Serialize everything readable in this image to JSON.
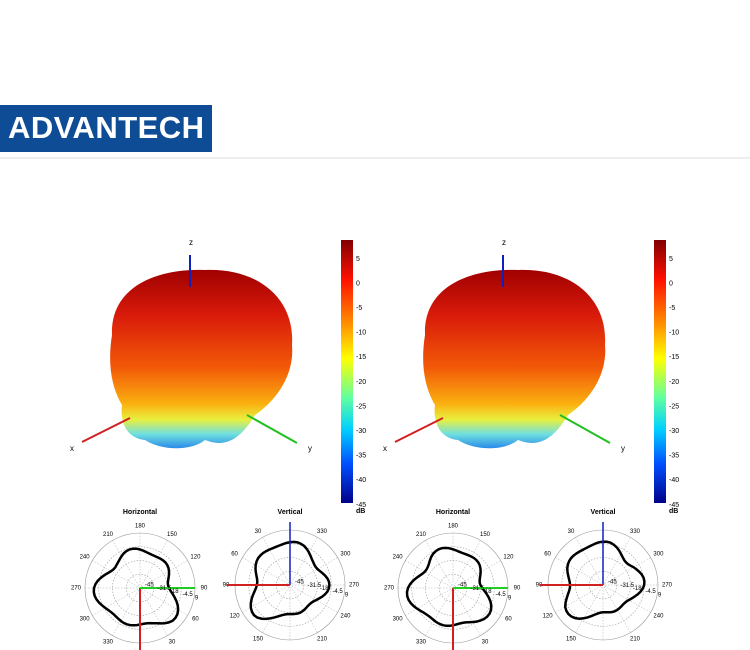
{
  "logo": "ADVANTECH",
  "panels": [
    {
      "axes": {
        "z": "z",
        "x": "x",
        "y": "y"
      },
      "colorbar": {
        "ticks": [
          5,
          0,
          -5,
          -10,
          -15,
          -20,
          -25,
          -30,
          -35,
          -40,
          -45
        ],
        "unit": "dB"
      },
      "polar": [
        {
          "title": "Horizontal",
          "angles": [
            180,
            210,
            150,
            240,
            120,
            270,
            90,
            300,
            60,
            330,
            30
          ],
          "rings": [
            -45,
            -31.5,
            -18,
            -4.5,
            9
          ]
        },
        {
          "title": "Vertical",
          "angles": [
            30,
            330,
            60,
            300,
            90,
            270,
            120,
            240,
            150,
            210
          ],
          "rings": [
            -45,
            -31.5,
            -18,
            -4.5,
            9
          ]
        }
      ]
    },
    {
      "axes": {
        "z": "z",
        "x": "x",
        "y": "y"
      },
      "colorbar": {
        "ticks": [
          5,
          0,
          -5,
          -10,
          -15,
          -20,
          -25,
          -30,
          -35,
          -40,
          -45
        ],
        "unit": "dB"
      },
      "polar": [
        {
          "title": "Horizontal",
          "angles": [
            180,
            210,
            150,
            240,
            120,
            270,
            90,
            300,
            60,
            330,
            30
          ],
          "rings": [
            -45,
            -31.5,
            -18,
            -4.5,
            9
          ]
        },
        {
          "title": "Vertical",
          "angles": [
            30,
            330,
            60,
            300,
            90,
            270,
            120,
            240,
            150,
            210
          ],
          "rings": [
            -45,
            -31.5,
            -18,
            -4.5,
            9
          ]
        }
      ]
    }
  ]
}
